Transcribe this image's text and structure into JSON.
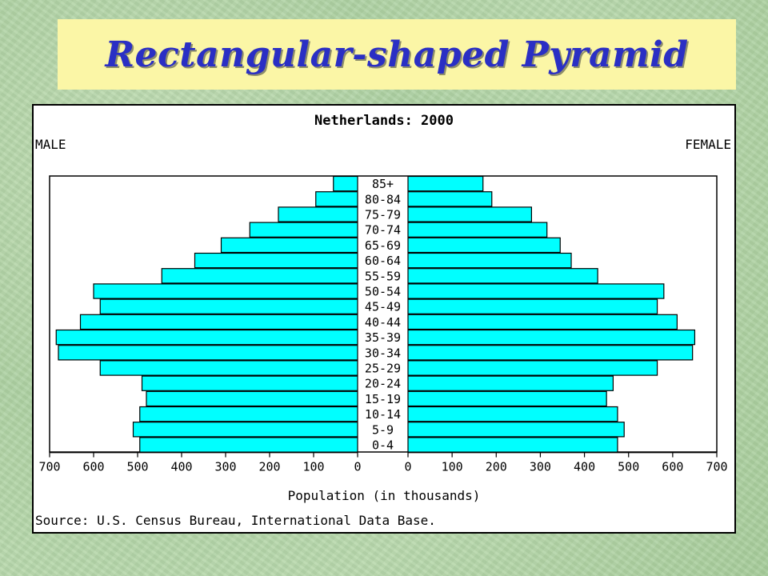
{
  "slide": {
    "title": "Rectangular-shaped Pyramid"
  },
  "chart_data": {
    "type": "bar",
    "title": "Netherlands: 2000",
    "left_label": "MALE",
    "right_label": "FEMALE",
    "xlabel": "Population (in thousands)",
    "source": "Source: U.S. Census Bureau, International Data Base.",
    "xlim": [
      0,
      700
    ],
    "x_ticks": [
      "700",
      "600",
      "500",
      "400",
      "300",
      "200",
      "100",
      "0",
      "0",
      "100",
      "200",
      "300",
      "400",
      "500",
      "600",
      "700"
    ],
    "categories": [
      "85+",
      "80-84",
      "75-79",
      "70-74",
      "65-69",
      "60-64",
      "55-59",
      "50-54",
      "45-49",
      "40-44",
      "35-39",
      "30-34",
      "25-29",
      "20-24",
      "15-19",
      "10-14",
      "5-9",
      "0-4"
    ],
    "series": [
      {
        "name": "MALE",
        "values": [
          55,
          95,
          180,
          245,
          310,
          370,
          445,
          600,
          585,
          630,
          685,
          680,
          585,
          490,
          480,
          495,
          510,
          495
        ]
      },
      {
        "name": "FEMALE",
        "values": [
          170,
          190,
          280,
          315,
          345,
          370,
          430,
          580,
          565,
          610,
          650,
          645,
          565,
          465,
          450,
          475,
          490,
          475
        ]
      }
    ],
    "colors": {
      "bar": "#00ffff",
      "bar_stroke": "#000000",
      "panel_bg": "#ffffff"
    }
  }
}
